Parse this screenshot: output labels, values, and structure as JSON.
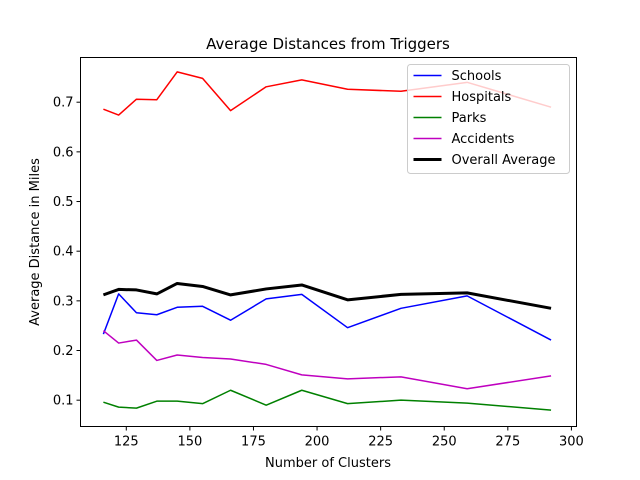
{
  "chart_data": {
    "type": "line",
    "title": "Average Distances from Triggers",
    "xlabel": "Number of Clusters",
    "ylabel": "Average Distance in Miles",
    "xlim": [
      107,
      302
    ],
    "ylim": [
      0.047,
      0.79
    ],
    "xticks": [
      125,
      150,
      175,
      200,
      225,
      250,
      275,
      300
    ],
    "xtick_labels": [
      "125",
      "150",
      "175",
      "200",
      "225",
      "250",
      "275",
      "300"
    ],
    "yticks": [
      0.1,
      0.2,
      0.3,
      0.4,
      0.5,
      0.6,
      0.7
    ],
    "ytick_labels": [
      "0.1",
      "0.2",
      "0.3",
      "0.4",
      "0.5",
      "0.6",
      "0.7"
    ],
    "legend_position": "top-right",
    "grid": false,
    "x": [
      116,
      122,
      129,
      137,
      145,
      155,
      166,
      180,
      194,
      212,
      233,
      259,
      292
    ],
    "series": [
      {
        "name": "Schools",
        "color": "#0000ff",
        "width": 1.5,
        "values": [
          0.233,
          0.314,
          0.276,
          0.272,
          0.287,
          0.289,
          0.261,
          0.304,
          0.313,
          0.246,
          0.285,
          0.31,
          0.221
        ]
      },
      {
        "name": "Hospitals",
        "color": "#ff0000",
        "width": 1.5,
        "values": [
          0.686,
          0.674,
          0.706,
          0.705,
          0.761,
          0.748,
          0.683,
          0.731,
          0.745,
          0.726,
          0.722,
          0.74,
          0.69
        ]
      },
      {
        "name": "Parks",
        "color": "#008000",
        "width": 1.5,
        "values": [
          0.096,
          0.086,
          0.084,
          0.098,
          0.098,
          0.093,
          0.12,
          0.09,
          0.12,
          0.093,
          0.1,
          0.094,
          0.08
        ]
      },
      {
        "name": "Accidents",
        "color": "#bf00bf",
        "width": 1.5,
        "values": [
          0.24,
          0.215,
          0.221,
          0.18,
          0.191,
          0.186,
          0.183,
          0.172,
          0.151,
          0.143,
          0.147,
          0.123,
          0.149
        ]
      },
      {
        "name": "Overall Average",
        "color": "#000000",
        "width": 3,
        "values": [
          0.312,
          0.323,
          0.322,
          0.314,
          0.335,
          0.329,
          0.312,
          0.324,
          0.332,
          0.302,
          0.313,
          0.316,
          0.285
        ]
      }
    ]
  }
}
